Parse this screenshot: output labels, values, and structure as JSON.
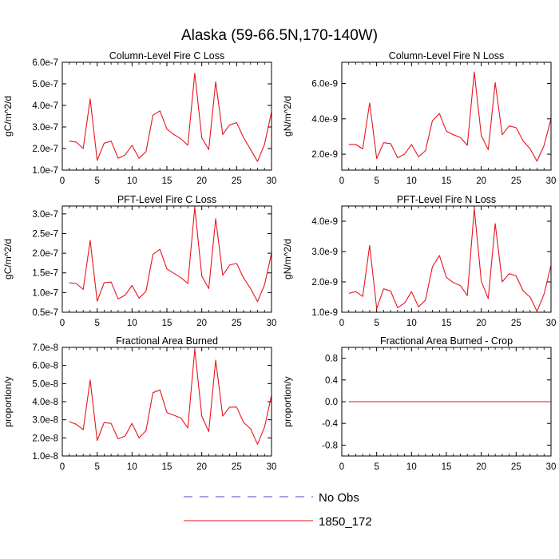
{
  "figure_title": "Alaska (59-66.5N,170-140W)",
  "colors": {
    "series_line": "#e8141e",
    "obs_line": "#4444cc",
    "axis": "#000000"
  },
  "legend": [
    {
      "label": "No Obs",
      "style": "dashed",
      "color": "#4444cc"
    },
    {
      "label": "1850_172",
      "style": "solid",
      "color": "#e8141e"
    }
  ],
  "chart_data": [
    {
      "type": "line",
      "title": "Column-Level Fire C Loss",
      "xlabel": "",
      "ylabel": "gC/m^2/d",
      "xlim": [
        0,
        30
      ],
      "ylim": [
        1e-07,
        6e-07
      ],
      "xticks": [
        0,
        5,
        10,
        15,
        20,
        25,
        30
      ],
      "xtick_labels": [
        "0",
        "5",
        "10",
        "15",
        "20",
        "25",
        "30"
      ],
      "yticks": [
        1e-07,
        2e-07,
        3e-07,
        4e-07,
        5e-07,
        6e-07
      ],
      "ytick_labels": [
        "1.0e-7",
        "2.0e-7",
        "3.0e-7",
        "4.0e-7",
        "5.0e-7",
        "6.0e-7"
      ],
      "series": [
        {
          "name": "1850_172",
          "x": [
            1,
            2,
            3,
            4,
            5,
            6,
            7,
            8,
            9,
            10,
            11,
            12,
            13,
            14,
            15,
            16,
            17,
            18,
            19,
            20,
            21,
            22,
            23,
            24,
            25,
            26,
            27,
            28,
            29,
            30
          ],
          "values": [
            2.35e-07,
            2.3e-07,
            2e-07,
            4.3e-07,
            1.45e-07,
            2.25e-07,
            2.35e-07,
            1.55e-07,
            1.7e-07,
            2.15e-07,
            1.55e-07,
            1.85e-07,
            3.55e-07,
            3.75e-07,
            2.9e-07,
            2.65e-07,
            2.45e-07,
            2.15e-07,
            5.5e-07,
            2.5e-07,
            1.95e-07,
            5.1e-07,
            2.65e-07,
            3.1e-07,
            3.2e-07,
            2.5e-07,
            1.95e-07,
            1.4e-07,
            2.2e-07,
            3.7e-07
          ]
        }
      ]
    },
    {
      "type": "line",
      "title": "Column-Level Fire N Loss",
      "xlabel": "",
      "ylabel": "gN/m^2/d",
      "xlim": [
        0,
        30
      ],
      "ylim": [
        1.1e-09,
        7.2e-09
      ],
      "xticks": [
        0,
        5,
        10,
        15,
        20,
        25,
        30
      ],
      "xtick_labels": [
        "0",
        "5",
        "10",
        "15",
        "20",
        "25",
        "30"
      ],
      "yticks": [
        2e-09,
        4e-09,
        6e-09
      ],
      "ytick_labels": [
        "2.0e-9",
        "4.0e-9",
        "6.0e-9"
      ],
      "series": [
        {
          "name": "1850_172",
          "x": [
            1,
            2,
            3,
            4,
            5,
            6,
            7,
            8,
            9,
            10,
            11,
            12,
            13,
            14,
            15,
            16,
            17,
            18,
            19,
            20,
            21,
            22,
            23,
            24,
            25,
            26,
            27,
            28,
            29,
            30
          ],
          "values": [
            2.55e-09,
            2.55e-09,
            2.3e-09,
            4.9e-09,
            1.75e-09,
            2.65e-09,
            2.6e-09,
            1.8e-09,
            2e-09,
            2.55e-09,
            1.85e-09,
            2.2e-09,
            3.9e-09,
            4.3e-09,
            3.3e-09,
            3.1e-09,
            2.95e-09,
            2.5e-09,
            6.65e-09,
            3.05e-09,
            2.25e-09,
            6.05e-09,
            3.1e-09,
            3.6e-09,
            3.5e-09,
            2.75e-09,
            2.3e-09,
            1.6e-09,
            2.5e-09,
            4e-09
          ]
        }
      ]
    },
    {
      "type": "line",
      "title": "PFT-Level Fire C Loss",
      "xlabel": "",
      "ylabel": "gC/m^2/d",
      "xlim": [
        0,
        30
      ],
      "ylim": [
        5e-08,
        3.2e-07
      ],
      "xticks": [
        0,
        5,
        10,
        15,
        20,
        25,
        30
      ],
      "xtick_labels": [
        "0",
        "5",
        "10",
        "15",
        "20",
        "25",
        "30"
      ],
      "yticks": [
        5e-08,
        1e-07,
        1.5e-07,
        2e-07,
        2.5e-07,
        3e-07
      ],
      "ytick_labels": [
        "0.5e-7",
        "1.0e-7",
        "1.5e-7",
        "2.0e-7",
        "2.5e-7",
        "3.0e-7"
      ],
      "series": [
        {
          "name": "1850_172",
          "x": [
            1,
            2,
            3,
            4,
            5,
            6,
            7,
            8,
            9,
            10,
            11,
            12,
            13,
            14,
            15,
            16,
            17,
            18,
            19,
            20,
            21,
            22,
            23,
            24,
            25,
            26,
            27,
            28,
            29,
            30
          ],
          "values": [
            1.25e-07,
            1.23e-07,
            1.08e-07,
            2.33e-07,
            7.8e-08,
            1.25e-07,
            1.27e-07,
            8.4e-08,
            9.3e-08,
            1.18e-07,
            8.6e-08,
            1.03e-07,
            1.97e-07,
            2.1e-07,
            1.6e-07,
            1.49e-07,
            1.38e-07,
            1.23e-07,
            3.17e-07,
            1.42e-07,
            1.1e-07,
            2.88e-07,
            1.44e-07,
            1.7e-07,
            1.74e-07,
            1.37e-07,
            1.1e-07,
            7.7e-08,
            1.2e-07,
            2e-07
          ]
        }
      ]
    },
    {
      "type": "line",
      "title": "PFT-Level Fire N Loss",
      "xlabel": "",
      "ylabel": "gN/m^2/d",
      "xlim": [
        0,
        30
      ],
      "ylim": [
        1e-09,
        4.5e-09
      ],
      "xticks": [
        0,
        5,
        10,
        15,
        20,
        25,
        30
      ],
      "xtick_labels": [
        "0",
        "5",
        "10",
        "15",
        "20",
        "25",
        "30"
      ],
      "yticks": [
        1e-09,
        2e-09,
        3e-09,
        4e-09
      ],
      "ytick_labels": [
        "1.0e-9",
        "2.0e-9",
        "3.0e-9",
        "4.0e-9"
      ],
      "series": [
        {
          "name": "1850_172",
          "x": [
            1,
            2,
            3,
            4,
            5,
            6,
            7,
            8,
            9,
            10,
            11,
            12,
            13,
            14,
            15,
            16,
            17,
            18,
            19,
            20,
            21,
            22,
            23,
            24,
            25,
            26,
            27,
            28,
            29,
            30
          ],
          "values": [
            1.62e-09,
            1.68e-09,
            1.52e-09,
            3.2e-09,
            1.12e-09,
            1.77e-09,
            1.7e-09,
            1.15e-09,
            1.3e-09,
            1.68e-09,
            1.18e-09,
            1.4e-09,
            2.5e-09,
            2.87e-09,
            2.15e-09,
            1.98e-09,
            1.88e-09,
            1.55e-09,
            4.42e-09,
            2.02e-09,
            1.45e-09,
            3.92e-09,
            2e-09,
            2.27e-09,
            2.2e-09,
            1.7e-09,
            1.5e-09,
            1.03e-09,
            1.6e-09,
            2.55e-09
          ]
        }
      ]
    },
    {
      "type": "line",
      "title": "Fractional Area Burned",
      "xlabel": "",
      "ylabel": "proportion/y",
      "xlim": [
        0,
        30
      ],
      "ylim": [
        1e-08,
        7e-08
      ],
      "xticks": [
        0,
        5,
        10,
        15,
        20,
        25,
        30
      ],
      "xtick_labels": [
        "0",
        "5",
        "10",
        "15",
        "20",
        "25",
        "30"
      ],
      "yticks": [
        1e-08,
        2e-08,
        3e-08,
        4e-08,
        5e-08,
        6e-08,
        7e-08
      ],
      "ytick_labels": [
        "1.0e-8",
        "2.0e-8",
        "3.0e-8",
        "4.0e-8",
        "5.0e-8",
        "6.0e-8",
        "7.0e-8"
      ],
      "series": [
        {
          "name": "1850_172",
          "x": [
            1,
            2,
            3,
            4,
            5,
            6,
            7,
            8,
            9,
            10,
            11,
            12,
            13,
            14,
            15,
            16,
            17,
            18,
            19,
            20,
            21,
            22,
            23,
            24,
            25,
            26,
            27,
            28,
            29,
            30
          ],
          "values": [
            2.9e-08,
            2.75e-08,
            2.45e-08,
            5.2e-08,
            1.85e-08,
            2.85e-08,
            2.8e-08,
            1.95e-08,
            2.1e-08,
            2.8e-08,
            2e-08,
            2.4e-08,
            4.5e-08,
            4.65e-08,
            3.4e-08,
            3.25e-08,
            3.1e-08,
            2.55e-08,
            6.9e-08,
            3.2e-08,
            2.35e-08,
            6.3e-08,
            3.2e-08,
            3.7e-08,
            3.7e-08,
            2.85e-08,
            2.5e-08,
            1.65e-08,
            2.6e-08,
            4.35e-08
          ]
        }
      ]
    },
    {
      "type": "line",
      "title": "Fractional Area Burned - Crop",
      "xlabel": "",
      "ylabel": "proportion/y",
      "xlim": [
        0,
        30
      ],
      "ylim": [
        -1.0,
        1.0
      ],
      "xticks": [
        0,
        5,
        10,
        15,
        20,
        25,
        30
      ],
      "xtick_labels": [
        "0",
        "5",
        "10",
        "15",
        "20",
        "25",
        "30"
      ],
      "yticks": [
        -0.8,
        -0.4,
        0.0,
        0.4,
        0.8
      ],
      "ytick_labels": [
        "-0.8",
        "-0.4",
        "0.0",
        "0.4",
        "0.8"
      ],
      "series": [
        {
          "name": "1850_172",
          "x": [
            1,
            2,
            3,
            4,
            5,
            6,
            7,
            8,
            9,
            10,
            11,
            12,
            13,
            14,
            15,
            16,
            17,
            18,
            19,
            20,
            21,
            22,
            23,
            24,
            25,
            26,
            27,
            28,
            29,
            30
          ],
          "values": [
            0,
            0,
            0,
            0,
            0,
            0,
            0,
            0,
            0,
            0,
            0,
            0,
            0,
            0,
            0,
            0,
            0,
            0,
            0,
            0,
            0,
            0,
            0,
            0,
            0,
            0,
            0,
            0,
            0,
            0
          ]
        }
      ]
    }
  ]
}
